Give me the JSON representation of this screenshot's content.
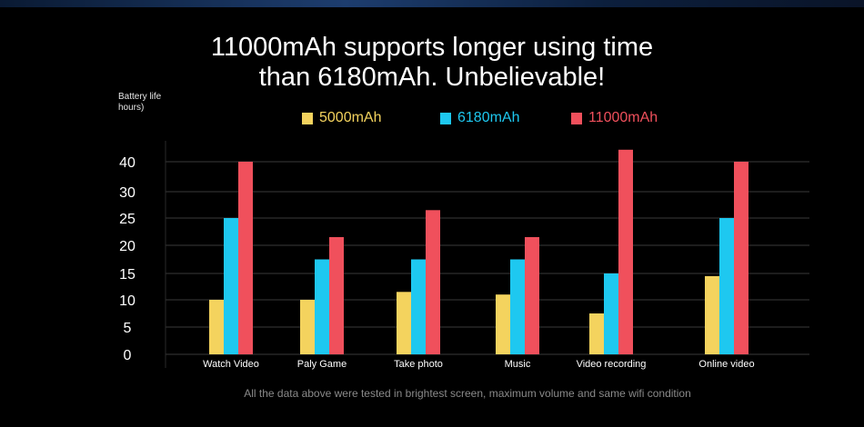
{
  "title_line1": "11000mAh supports longer using time",
  "title_line2": "than 6180mAh. Unbelievable!",
  "ylabel_line1": "Battery life",
  "ylabel_line2": "hours)",
  "footnote": "All the data above were tested in brightest screen, maximum volume and same wifi condition",
  "colors": {
    "background": "#000000",
    "series_5000": "#f4d35e",
    "series_6180": "#1ec8f0",
    "series_11000": "#f0505c",
    "grid": "#3a3a3a"
  },
  "chart_data": {
    "type": "bar",
    "categories": [
      "Watch Video",
      "Paly Game",
      "Take photo",
      "Music",
      "Video recording",
      "Online video"
    ],
    "series": [
      {
        "name": "5000mAh",
        "values": [
          10,
          10,
          11.5,
          11,
          7.5,
          14.5
        ]
      },
      {
        "name": "6180mAh",
        "values": [
          25,
          17.5,
          17.5,
          17.5,
          15,
          25
        ]
      },
      {
        "name": "11000mAh",
        "values": [
          40,
          21.5,
          26.5,
          21.5,
          44,
          40
        ]
      }
    ],
    "ytick_labels": [
      "0",
      "5",
      "10",
      "15",
      "20",
      "25",
      "30",
      "40"
    ],
    "ylim": [
      0,
      45
    ],
    "grid": true,
    "legend_position": "top"
  }
}
